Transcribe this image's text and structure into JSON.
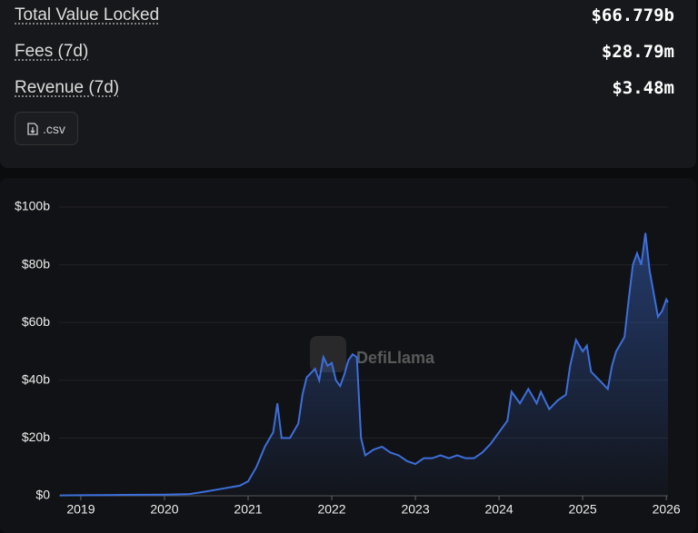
{
  "stats": [
    {
      "label": "Total Value Locked",
      "value": "$66.779b"
    },
    {
      "label": "Fees (7d)",
      "value": "$28.79m"
    },
    {
      "label": "Revenue (7d)",
      "value": "$3.48m"
    }
  ],
  "csv_button": ".csv",
  "chart_data": {
    "type": "area",
    "watermark": "DefiLlama",
    "color": "#3d6fdb",
    "grid": true,
    "x": [
      2018.75,
      2019,
      2019.5,
      2020,
      2020.3,
      2020.5,
      2020.7,
      2020.9,
      2021.0,
      2021.1,
      2021.2,
      2021.3,
      2021.35,
      2021.4,
      2021.5,
      2021.6,
      2021.65,
      2021.7,
      2021.8,
      2021.85,
      2021.9,
      2021.95,
      2022.0,
      2022.05,
      2022.1,
      2022.15,
      2022.2,
      2022.25,
      2022.3,
      2022.35,
      2022.4,
      2022.5,
      2022.6,
      2022.7,
      2022.8,
      2022.9,
      2023.0,
      2023.1,
      2023.2,
      2023.3,
      2023.4,
      2023.5,
      2023.6,
      2023.7,
      2023.8,
      2023.9,
      2024.0,
      2024.1,
      2024.15,
      2024.25,
      2024.35,
      2024.45,
      2024.5,
      2024.6,
      2024.7,
      2024.8,
      2024.85,
      2024.92,
      2025.0,
      2025.05,
      2025.1,
      2025.2,
      2025.3,
      2025.35,
      2025.4,
      2025.5,
      2025.55,
      2025.6,
      2025.65,
      2025.7,
      2025.75,
      2025.8,
      2025.85,
      2025.9,
      2025.95,
      2026.0,
      2026.02
    ],
    "values": [
      0.1,
      0.2,
      0.3,
      0.4,
      0.6,
      1.5,
      2.5,
      3.5,
      5,
      10,
      17,
      22,
      32,
      20,
      20,
      25,
      35,
      41,
      44,
      40,
      48,
      45,
      46,
      40,
      38,
      42,
      47,
      49,
      48,
      20,
      14,
      16,
      17,
      15,
      14,
      12,
      11,
      13,
      13,
      14,
      13,
      14,
      13,
      13,
      15,
      18,
      22,
      26,
      36,
      32,
      37,
      32,
      36,
      30,
      33,
      35,
      45,
      54,
      50,
      52,
      43,
      40,
      37,
      45,
      50,
      55,
      68,
      80,
      84,
      80,
      91,
      78,
      70,
      62,
      64,
      68,
      67
    ],
    "xlim": [
      2018.74,
      2026.02
    ],
    "xticks": [
      2019,
      2020,
      2021,
      2022,
      2023,
      2024,
      2025,
      2026
    ],
    "ylim": [
      0,
      100
    ],
    "yticks": [
      {
        "value": 0,
        "label": "$0"
      },
      {
        "value": 20,
        "label": "$20b"
      },
      {
        "value": 40,
        "label": "$40b"
      },
      {
        "value": 60,
        "label": "$60b"
      },
      {
        "value": 80,
        "label": "$80b"
      },
      {
        "value": 100,
        "label": "$100b"
      }
    ]
  }
}
